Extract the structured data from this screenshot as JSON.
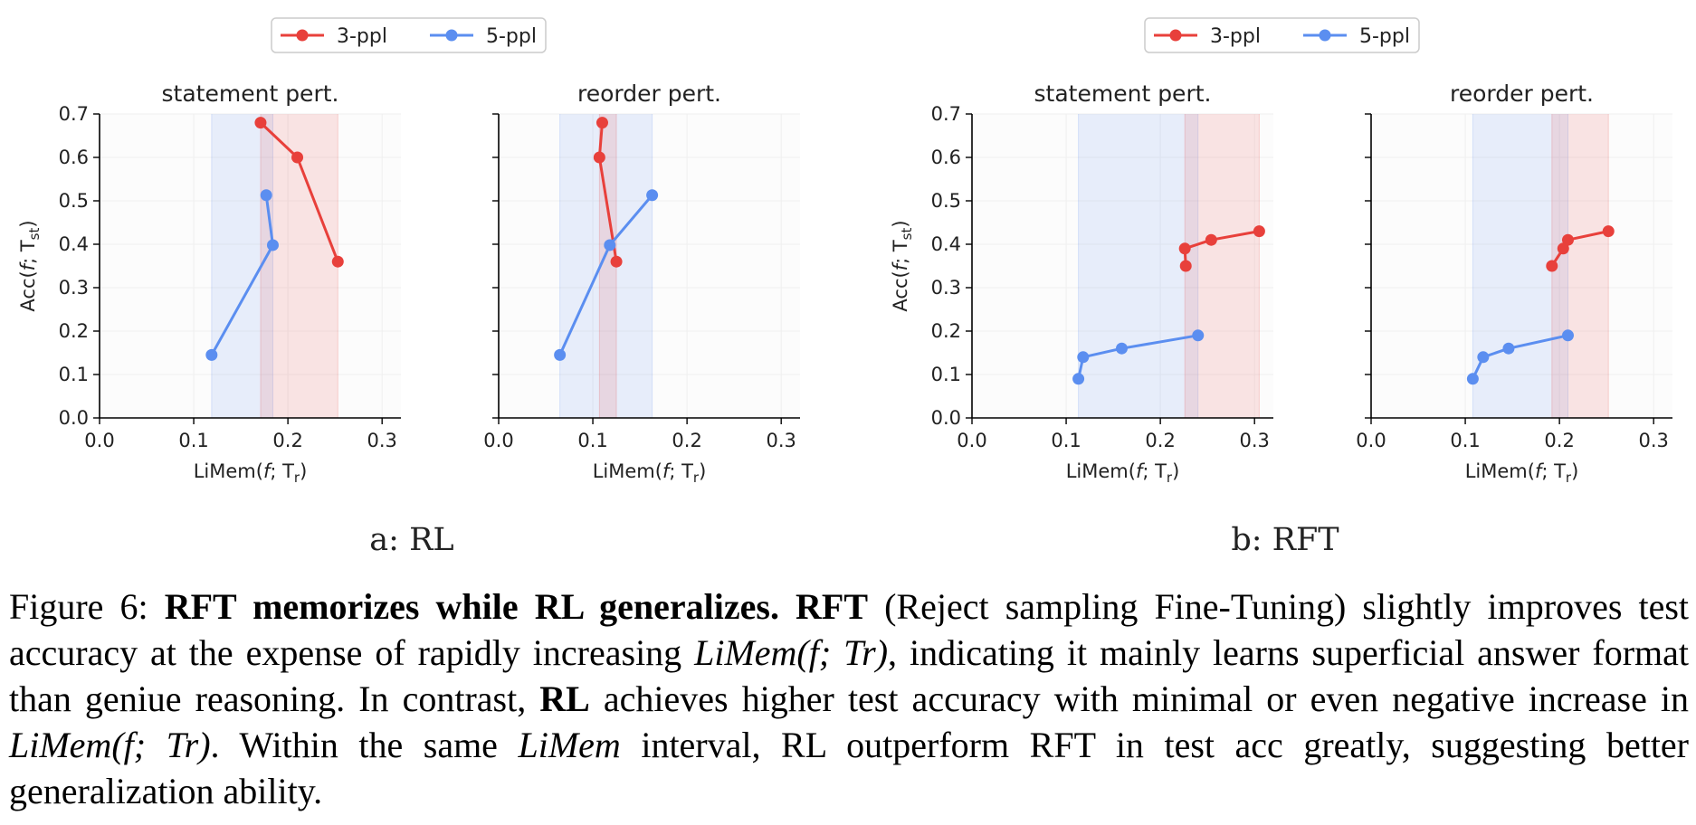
{
  "colors": {
    "three_ppl": "#e8403b",
    "five_ppl": "#5b8ef0"
  },
  "legend": [
    "3-ppl",
    "5-ppl"
  ],
  "axis": {
    "ylabel": "Acc(f; T_st)",
    "xlabel": "LiMem(f; T_r)",
    "yticks": [
      "0.0",
      "0.1",
      "0.2",
      "0.3",
      "0.4",
      "0.5",
      "0.6",
      "0.7"
    ],
    "xticks": [
      "0.0",
      "0.1",
      "0.2",
      "0.3"
    ]
  },
  "subfigures": [
    {
      "label": "a: RL"
    },
    {
      "label": "b: RFT"
    }
  ],
  "chart_data": [
    {
      "type": "line",
      "group": "RL",
      "title": "statement pert.",
      "xlabel": "LiMem(f; T_r)",
      "ylabel": "Acc(f; T_st)",
      "xlim": [
        0,
        0.32
      ],
      "ylim": [
        0,
        0.7
      ],
      "series": [
        {
          "name": "3-ppl",
          "x": [
            0.171,
            0.21,
            0.253
          ],
          "y": [
            0.68,
            0.6,
            0.36
          ],
          "band": [
            0.171,
            0.253
          ]
        },
        {
          "name": "5-ppl",
          "x": [
            0.119,
            0.184,
            0.177
          ],
          "y": [
            0.145,
            0.398,
            0.513
          ],
          "band": [
            0.119,
            0.184
          ]
        }
      ]
    },
    {
      "type": "line",
      "group": "RL",
      "title": "reorder pert.",
      "xlabel": "LiMem(f; T_r)",
      "ylabel": "",
      "xlim": [
        0,
        0.32
      ],
      "ylim": [
        0,
        0.7
      ],
      "series": [
        {
          "name": "3-ppl",
          "x": [
            0.11,
            0.107,
            0.125
          ],
          "y": [
            0.68,
            0.6,
            0.36
          ],
          "band": [
            0.107,
            0.125
          ]
        },
        {
          "name": "5-ppl",
          "x": [
            0.065,
            0.118,
            0.163
          ],
          "y": [
            0.145,
            0.398,
            0.513
          ],
          "band": [
            0.065,
            0.163
          ]
        }
      ]
    },
    {
      "type": "line",
      "group": "RFT",
      "title": "statement pert.",
      "xlabel": "LiMem(f; T_r)",
      "ylabel": "Acc(f; T_st)",
      "xlim": [
        0,
        0.32
      ],
      "ylim": [
        0,
        0.7
      ],
      "series": [
        {
          "name": "3-ppl",
          "x": [
            0.227,
            0.226,
            0.254,
            0.305
          ],
          "y": [
            0.35,
            0.39,
            0.41,
            0.43
          ],
          "band": [
            0.226,
            0.305
          ]
        },
        {
          "name": "5-ppl",
          "x": [
            0.113,
            0.118,
            0.159,
            0.24
          ],
          "y": [
            0.09,
            0.14,
            0.16,
            0.19
          ],
          "band": [
            0.113,
            0.24
          ]
        }
      ]
    },
    {
      "type": "line",
      "group": "RFT",
      "title": "reorder pert.",
      "xlabel": "LiMem(f; T_r)",
      "ylabel": "",
      "xlim": [
        0,
        0.32
      ],
      "ylim": [
        0,
        0.7
      ],
      "series": [
        {
          "name": "3-ppl",
          "x": [
            0.192,
            0.204,
            0.209,
            0.252
          ],
          "y": [
            0.35,
            0.39,
            0.41,
            0.43
          ],
          "band": [
            0.192,
            0.252
          ]
        },
        {
          "name": "5-ppl",
          "x": [
            0.108,
            0.119,
            0.146,
            0.209
          ],
          "y": [
            0.09,
            0.14,
            0.16,
            0.19
          ],
          "band": [
            0.108,
            0.209
          ]
        }
      ]
    }
  ],
  "caption": {
    "lead": "Figure 6: ",
    "bold1": "RFT memorizes while RL generalizes.",
    "sp1": " ",
    "bold2": "RFT",
    "t1": " (Reject sampling Fine-Tuning) slightly improves test accuracy at the expense of rapidly increasing ",
    "m1": "LiMem(f; Tr)",
    "t2": ", indicating it mainly learns superficial answer format than geniue reasoning. In contrast, ",
    "bold3": "RL",
    "t3": " achieves higher test accuracy with minimal or even negative increase in ",
    "m2": "LiMem(f; Tr)",
    "t4": ". Within the same ",
    "m3": "LiMem",
    "t5": " interval, RL outperform RFT in test acc greatly, suggesting better generalization ability."
  }
}
